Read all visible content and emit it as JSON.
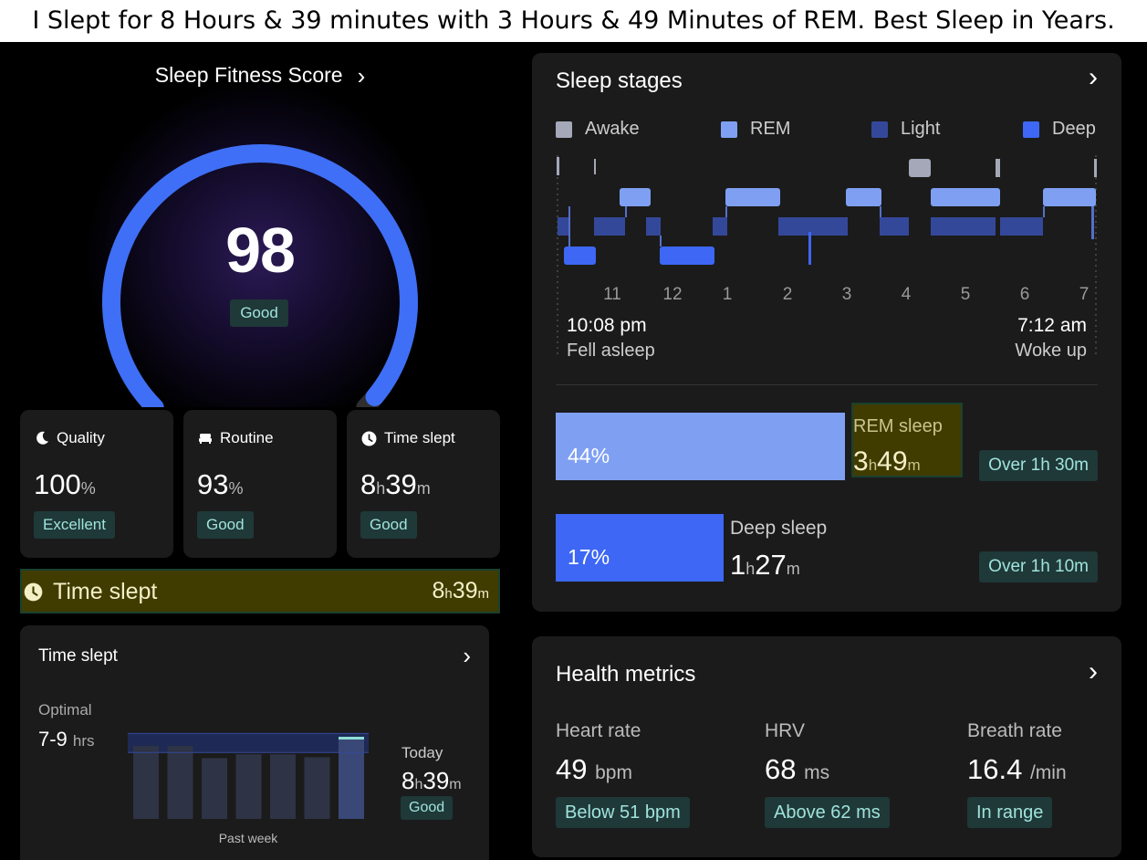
{
  "caption": "I Slept for 8 Hours & 39 minutes with 3 Hours & 49 Minutes of REM. Best Sleep in Years.",
  "score_panel": {
    "title": "Sleep Fitness Score",
    "chevron": "chevron-right-icon",
    "score": "98",
    "score_fraction": 0.98,
    "rating": "Good",
    "colors": {
      "arc": "#3e6ff6",
      "track": "#333333"
    }
  },
  "metrics": [
    {
      "icon": "moon-icon",
      "label": "Quality",
      "value": "100",
      "unit": "%",
      "badge": "Excellent"
    },
    {
      "icon": "bed-icon",
      "label": "Routine",
      "value": "93",
      "unit": "%",
      "badge": "Good"
    },
    {
      "icon": "clock-icon",
      "label": "Time slept",
      "hours": "8",
      "h_unit": "h",
      "minutes": "39",
      "m_unit": "m",
      "badge": "Good"
    }
  ],
  "highlight": {
    "icon": "clock-icon",
    "label": "Time slept",
    "hours": "8",
    "h_unit": "h",
    "minutes": "39",
    "m_unit": "m"
  },
  "time_slept_card": {
    "title": "Time slept",
    "optimal_label": "Optimal",
    "optimal_value": "7-9",
    "optimal_unit": "hrs",
    "today_label": "Today",
    "today_hours": "8",
    "today_minutes": "39",
    "today_badge": "Good",
    "week_label": "Past week",
    "week_hours": [
      7.7,
      7.7,
      6.4,
      6.8,
      6.8,
      6.5,
      8.65
    ]
  },
  "sleep_stages": {
    "title": "Sleep stages",
    "legend": [
      {
        "name": "Awake",
        "color": "#a4a8b8"
      },
      {
        "name": "REM",
        "color": "#7fa0f2"
      },
      {
        "name": "Light",
        "color": "#34489a"
      },
      {
        "name": "Deep",
        "color": "#3d67f4"
      }
    ],
    "ticks": [
      "11",
      "12",
      "1",
      "2",
      "3",
      "4",
      "5",
      "6",
      "7"
    ],
    "start_time": "10:08 pm",
    "start_label": "Fell asleep",
    "end_time": "7:12 am",
    "end_label": "Woke up",
    "rem": {
      "percent": "44%",
      "fraction": 0.44,
      "label": "REM sleep",
      "hours": "3",
      "minutes": "49",
      "target": "Over 1h 30m"
    },
    "deep": {
      "percent": "17%",
      "fraction": 0.17,
      "label": "Deep sleep",
      "hours": "1",
      "minutes": "27",
      "target": "Over 1h 10m"
    }
  },
  "health_metrics": {
    "title": "Health metrics",
    "items": [
      {
        "label": "Heart rate",
        "value": "49",
        "unit": "bpm",
        "badge": "Below 51 bpm"
      },
      {
        "label": "HRV",
        "value": "68",
        "unit": "ms",
        "badge": "Above 62 ms"
      },
      {
        "label": "Breath rate",
        "value": "16.4",
        "unit": "/min",
        "badge": "In range"
      }
    ]
  }
}
